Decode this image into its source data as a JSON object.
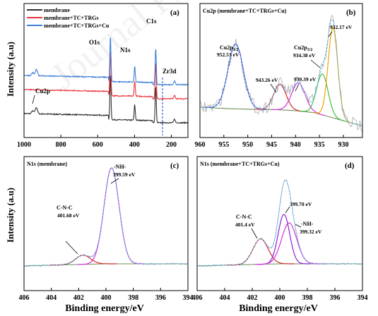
{
  "watermark": "Journal Pre-proof",
  "colors": {
    "black": "#303030",
    "red": "#e8353a",
    "blue": "#3c7fd6",
    "zr": "#1f3fd0",
    "raw": "#a8a8a8",
    "bg": "#6e8f5a",
    "fitBlue": "#5fb8f0",
    "red2": "#d22b2b",
    "magenta": "#d930d9",
    "blue2": "#2d2dcc",
    "green": "#42c042",
    "orange": "#f0a500",
    "purple": "#8a1fd8"
  },
  "yaxis_label": "Intensity (a.u)",
  "xaxis_label": "Binding energy/eV",
  "chart_data": [
    {
      "panel": "(a)",
      "type": "line",
      "x_ticks": [
        "1000",
        "800",
        "600",
        "400",
        "200"
      ],
      "xlim": [
        1000,
        110
      ],
      "legend": [
        "membrane",
        "membrane+TC+TRGs",
        "membrane+TC+TRGs+Cu"
      ],
      "annotations": {
        "o1s": "O1s",
        "n1s": "N1s",
        "c1s": "C1s",
        "zr3d": "Zr3d",
        "cu2p": "Cu2p"
      },
      "peaks_ev": {
        "O1s": 531,
        "N1s": 399,
        "C1s": 285,
        "Zr3d": 183,
        "Cu2p": 933
      }
    },
    {
      "panel": "(b)",
      "title": "Cu2p (membrane+TC+TRGs+Cu)",
      "type": "line",
      "x_ticks": [
        "960",
        "955",
        "950",
        "945",
        "940",
        "935",
        "930"
      ],
      "xlim": [
        960,
        926
      ],
      "peaks": [
        {
          "label": "952.53 eV",
          "center": 952.53
        },
        {
          "label": "943.26 eV",
          "center": 943.26
        },
        {
          "label": "939.39 eV",
          "center": 939.39
        },
        {
          "label": "934.38 eV",
          "center": 934.38
        },
        {
          "label": "932.17 eV",
          "center": 932.17
        }
      ],
      "labels": {
        "cu_half": "Cu2p",
        "cu_half_sub": "1/2",
        "cu_3half": "Cu2p",
        "cu_3half_sub": "3/2"
      }
    },
    {
      "panel": "(c)",
      "title": "N1s (membrane)",
      "type": "line",
      "x_ticks": [
        "406",
        "404",
        "402",
        "400",
        "398",
        "396",
        "394"
      ],
      "xlim": [
        406,
        394
      ],
      "peaks": [
        {
          "name": "-NH-",
          "label": "399.59 eV",
          "center": 399.59
        },
        {
          "name": "C-N-C",
          "label": "401.68 eV",
          "center": 401.68
        }
      ]
    },
    {
      "panel": "(d)",
      "title": "N1s (membrane+TC+TRGs+Cu)",
      "type": "line",
      "x_ticks": [
        "406",
        "404",
        "402",
        "400",
        "398",
        "396",
        "394"
      ],
      "xlim": [
        406,
        394
      ],
      "peaks": [
        {
          "name": "C-N-C",
          "label": "401.4 eV",
          "center": 401.4
        },
        {
          "name": "",
          "label": "399.70 eV",
          "center": 399.7
        },
        {
          "name": "-NH-",
          "label": "399.32 eV",
          "center": 399.32
        }
      ]
    }
  ]
}
